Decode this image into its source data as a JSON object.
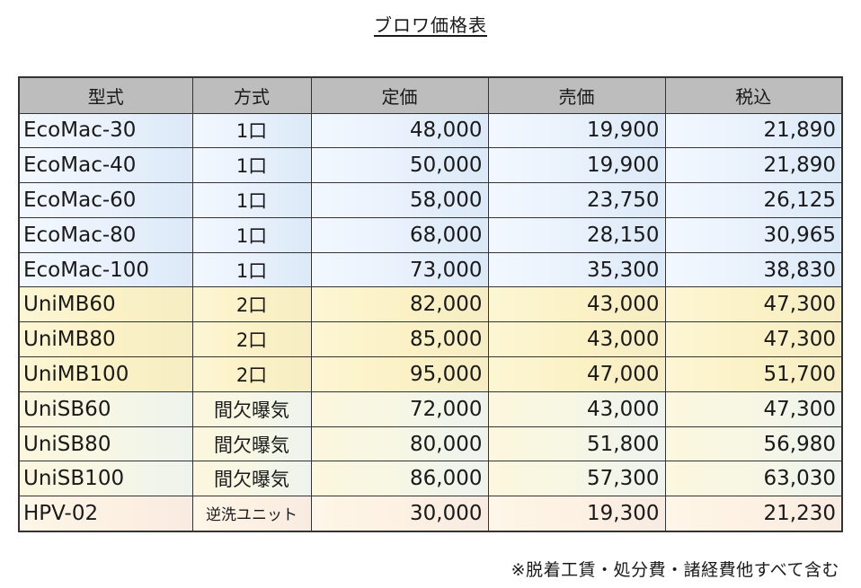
{
  "title": "ブロワ価格表",
  "table": {
    "headers": [
      "型式",
      "方式",
      "定価",
      "売価",
      "税込"
    ],
    "rows": [
      {
        "model": "EcoMac-30",
        "method": "1口",
        "list_price": "48,000",
        "sale_price": "19,900",
        "tax_incl": "21,890",
        "group": "eco"
      },
      {
        "model": "EcoMac-40",
        "method": "1口",
        "list_price": "50,000",
        "sale_price": "19,900",
        "tax_incl": "21,890",
        "group": "eco"
      },
      {
        "model": "EcoMac-60",
        "method": "1口",
        "list_price": "58,000",
        "sale_price": "23,750",
        "tax_incl": "26,125",
        "group": "eco"
      },
      {
        "model": "EcoMac-80",
        "method": "1口",
        "list_price": "68,000",
        "sale_price": "28,150",
        "tax_incl": "30,965",
        "group": "eco"
      },
      {
        "model": "EcoMac-100",
        "method": "1口",
        "list_price": "73,000",
        "sale_price": "35,300",
        "tax_incl": "38,830",
        "group": "eco"
      },
      {
        "model": "UniMB60",
        "method": "2口",
        "list_price": "82,000",
        "sale_price": "43,000",
        "tax_incl": "47,300",
        "group": "unimb"
      },
      {
        "model": "UniMB80",
        "method": "2口",
        "list_price": "85,000",
        "sale_price": "43,000",
        "tax_incl": "47,300",
        "group": "unimb"
      },
      {
        "model": "UniMB100",
        "method": "2口",
        "list_price": "95,000",
        "sale_price": "47,000",
        "tax_incl": "51,700",
        "group": "unimb"
      },
      {
        "model": "UniSB60",
        "method": "間欠曝気",
        "list_price": "72,000",
        "sale_price": "43,000",
        "tax_incl": "47,300",
        "group": "unisb"
      },
      {
        "model": "UniSB80",
        "method": "間欠曝気",
        "list_price": "80,000",
        "sale_price": "51,800",
        "tax_incl": "56,980",
        "group": "unisb"
      },
      {
        "model": "UniSB100",
        "method": "間欠曝気",
        "list_price": "86,000",
        "sale_price": "57,300",
        "tax_incl": "63,030",
        "group": "unisb"
      },
      {
        "model": "HPV-02",
        "method": "逆洗ユニット",
        "list_price": "30,000",
        "sale_price": "19,300",
        "tax_incl": "21,230",
        "group": "hpv"
      }
    ]
  },
  "footnote": "※脱着工賃・処分費・諸経費他すべて含む"
}
